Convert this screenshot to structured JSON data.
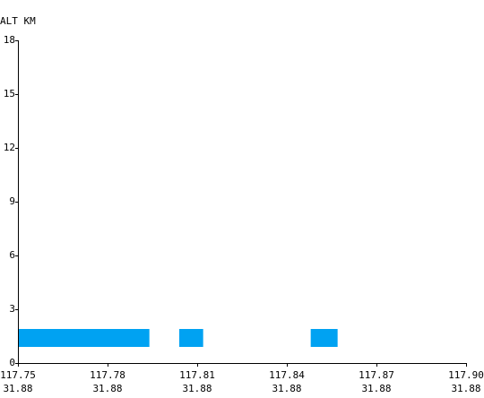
{
  "chart_data": {
    "type": "bar",
    "ylabel": "ALT KM",
    "ylim": [
      0,
      18
    ],
    "yticks": [
      {
        "value": 0,
        "label": "0"
      },
      {
        "value": 3,
        "label": "3"
      },
      {
        "value": 6,
        "label": "6"
      },
      {
        "value": 9,
        "label": "9"
      },
      {
        "value": 12,
        "label": "12"
      },
      {
        "value": 15,
        "label": "15"
      },
      {
        "value": 18,
        "label": "18"
      }
    ],
    "xlim": [
      117.75,
      117.9
    ],
    "xticks": [
      {
        "value": 117.75,
        "line1": "117.75",
        "line2": "31.88"
      },
      {
        "value": 117.78,
        "line1": "117.78",
        "line2": "31.88"
      },
      {
        "value": 117.81,
        "line1": "117.81",
        "line2": "31.88"
      },
      {
        "value": 117.84,
        "line1": "117.84",
        "line2": "31.88"
      },
      {
        "value": 117.87,
        "line1": "117.87",
        "line2": "31.88"
      },
      {
        "value": 117.9,
        "line1": "117.90",
        "line2": "31.88"
      }
    ],
    "segments": [
      {
        "x_start": 117.75,
        "x_end": 117.794,
        "y_bottom": 0.9,
        "y_top": 1.9
      },
      {
        "x_start": 117.804,
        "x_end": 117.812,
        "y_bottom": 0.9,
        "y_top": 1.9
      },
      {
        "x_start": 117.848,
        "x_end": 117.857,
        "y_bottom": 0.9,
        "y_top": 1.9
      }
    ],
    "bar_color": "#00a2f2",
    "axis_color": "#000000",
    "grid": false
  }
}
